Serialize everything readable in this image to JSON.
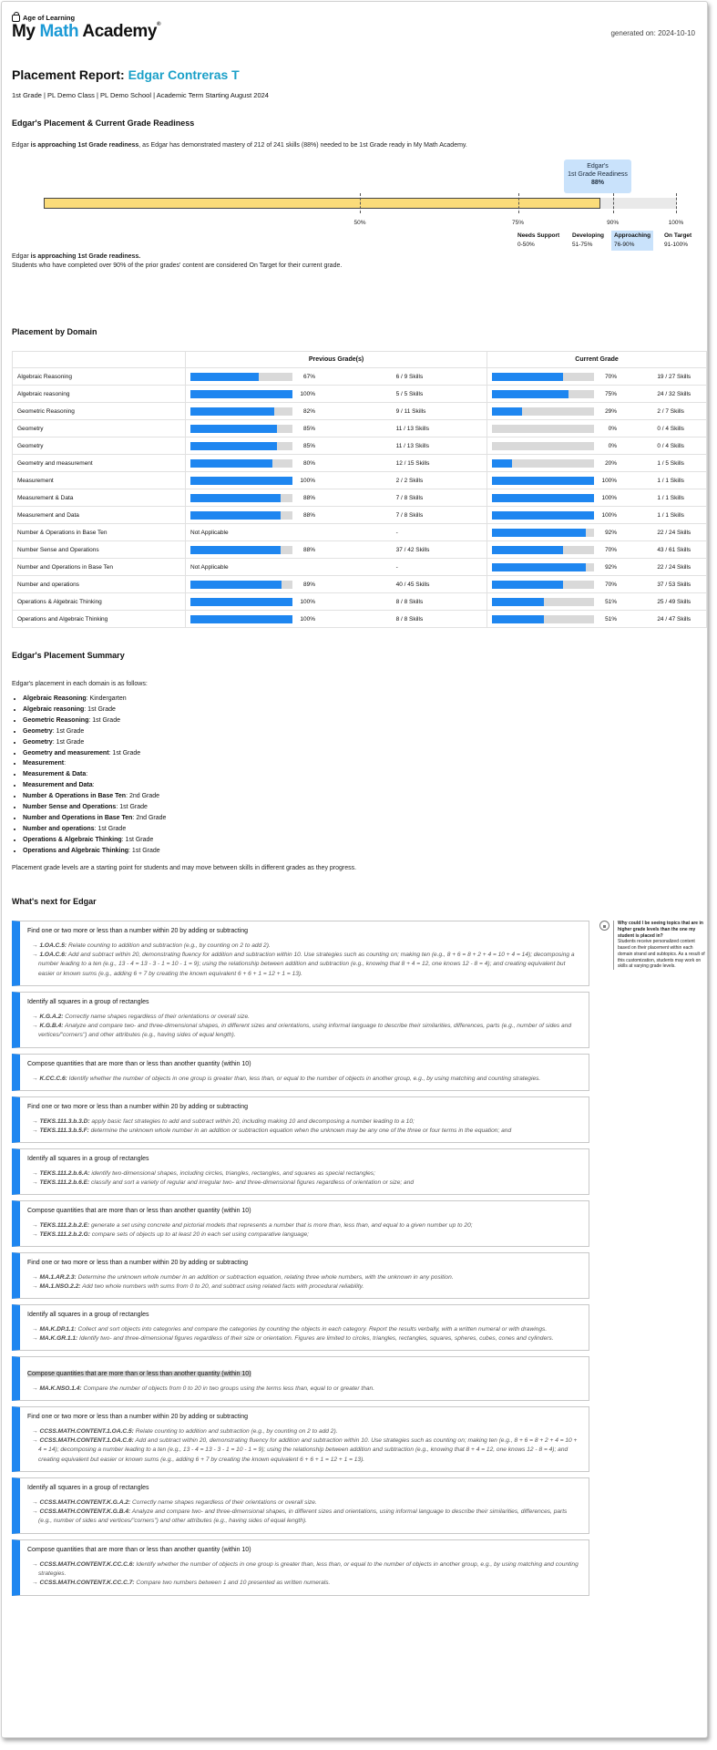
{
  "header": {
    "company": "Age of Learning",
    "brand_part1": "My ",
    "brand_part2": "Math",
    "brand_part3": " Academy",
    "generated": "generated on: 2024-10-10"
  },
  "report": {
    "title_prefix": "Placement Report: ",
    "student": "Edgar Contreras T",
    "subtitle": "1st Grade | PL Demo Class | PL Demo School | Academic Term Starting August 2024"
  },
  "readiness": {
    "heading": "Edgar's Placement & Current Grade Readiness",
    "intro_a": "Edgar ",
    "intro_b": "is approaching 1st Grade readiness",
    "intro_c": ", as Edgar has demonstrated mastery of 212 of 241 skills (88%) needed to be 1st Grade ready in My Math Academy.",
    "bubble_line1": "Edgar's",
    "bubble_line2": "1st Grade Readiness",
    "bubble_value": "88%",
    "fill_fraction": 0.88,
    "ticks": [
      "50%",
      "75%",
      "90%",
      "100%"
    ],
    "legend": [
      {
        "label": "Needs Support",
        "range": "0-50%"
      },
      {
        "label": "Developing",
        "range": "51-75%"
      },
      {
        "label": "Approaching",
        "range": "76-90%"
      },
      {
        "label": "On Target",
        "range": "91-100%"
      }
    ],
    "note_a": "Edgar ",
    "note_b": "is approaching 1st Grade readiness.",
    "note_c": "Students who have completed over 90% of the prior grades' content are considered On Target for their current grade."
  },
  "domain": {
    "heading": "Placement by Domain",
    "col_prev": "Previous Grade(s)",
    "col_curr": "Current Grade",
    "rows": [
      {
        "name": "Algebraic Reasoning",
        "prev_pct": 67,
        "prev_label": "67%",
        "prev_skills": "6 / 9 Skills",
        "cur_pct": 70,
        "cur_label": "70%",
        "cur_skills": "19 / 27 Skills"
      },
      {
        "name": "Algebraic reasoning",
        "prev_pct": 100,
        "prev_label": "100%",
        "prev_skills": "5 / 5 Skills",
        "cur_pct": 75,
        "cur_label": "75%",
        "cur_skills": "24 / 32 Skills"
      },
      {
        "name": "Geometric Reasoning",
        "prev_pct": 82,
        "prev_label": "82%",
        "prev_skills": "9 / 11 Skills",
        "cur_pct": 29,
        "cur_label": "29%",
        "cur_skills": "2 / 7 Skills"
      },
      {
        "name": "Geometry",
        "prev_pct": 85,
        "prev_label": "85%",
        "prev_skills": "11 / 13 Skills",
        "cur_pct": 0,
        "cur_label": "0%",
        "cur_skills": "0 / 4 Skills"
      },
      {
        "name": "Geometry",
        "prev_pct": 85,
        "prev_label": "85%",
        "prev_skills": "11 / 13 Skills",
        "cur_pct": 0,
        "cur_label": "0%",
        "cur_skills": "0 / 4 Skills"
      },
      {
        "name": "Geometry and measurement",
        "prev_pct": 80,
        "prev_label": "80%",
        "prev_skills": "12 / 15 Skills",
        "cur_pct": 20,
        "cur_label": "20%",
        "cur_skills": "1 / 5 Skills"
      },
      {
        "name": "Measurement",
        "prev_pct": 100,
        "prev_label": "100%",
        "prev_skills": "2 / 2 Skills",
        "cur_pct": 100,
        "cur_label": "100%",
        "cur_skills": "1 / 1 Skills"
      },
      {
        "name": "Measurement & Data",
        "prev_pct": 88,
        "prev_label": "88%",
        "prev_skills": "7 / 8 Skills",
        "cur_pct": 100,
        "cur_label": "100%",
        "cur_skills": "1 / 1 Skills"
      },
      {
        "name": "Measurement and Data",
        "prev_pct": 88,
        "prev_label": "88%",
        "prev_skills": "7 / 8 Skills",
        "cur_pct": 100,
        "cur_label": "100%",
        "cur_skills": "1 / 1 Skills"
      },
      {
        "name": "Number & Operations in Base Ten",
        "prev_na": "Not Applicable",
        "prev_skills": "-",
        "cur_pct": 92,
        "cur_label": "92%",
        "cur_skills": "22 / 24 Skills"
      },
      {
        "name": "Number Sense and Operations",
        "prev_pct": 88,
        "prev_label": "88%",
        "prev_skills": "37 / 42 Skills",
        "cur_pct": 70,
        "cur_label": "70%",
        "cur_skills": "43 / 61 Skills"
      },
      {
        "name": "Number and Operations in Base Ten",
        "prev_na": "Not Applicable",
        "prev_skills": "-",
        "cur_pct": 92,
        "cur_label": "92%",
        "cur_skills": "22 / 24 Skills"
      },
      {
        "name": "Number and operations",
        "prev_pct": 89,
        "prev_label": "89%",
        "prev_skills": "40 / 45 Skills",
        "cur_pct": 70,
        "cur_label": "70%",
        "cur_skills": "37 / 53 Skills"
      },
      {
        "name": "Operations & Algebraic Thinking",
        "prev_pct": 100,
        "prev_label": "100%",
        "prev_skills": "8 / 8 Skills",
        "cur_pct": 51,
        "cur_label": "51%",
        "cur_skills": "25 / 49 Skills"
      },
      {
        "name": "Operations and Algebraic Thinking",
        "prev_pct": 100,
        "prev_label": "100%",
        "prev_skills": "8 / 8 Skills",
        "cur_pct": 51,
        "cur_label": "51%",
        "cur_skills": "24 / 47 Skills"
      }
    ]
  },
  "summary": {
    "heading": "Edgar's Placement Summary",
    "intro": "Edgar's placement in each domain is as follows:",
    "items": [
      {
        "domain": "Algebraic Reasoning",
        "grade": ": Kindergarten"
      },
      {
        "domain": "Algebraic reasoning",
        "grade": ": 1st Grade"
      },
      {
        "domain": "Geometric Reasoning",
        "grade": ": 1st Grade"
      },
      {
        "domain": "Geometry",
        "grade": ": 1st Grade"
      },
      {
        "domain": "Geometry",
        "grade": ": 1st Grade"
      },
      {
        "domain": "Geometry and measurement",
        "grade": ": 1st Grade"
      },
      {
        "domain": "Measurement",
        "grade": ":"
      },
      {
        "domain": "Measurement & Data",
        "grade": ":"
      },
      {
        "domain": "Measurement and Data",
        "grade": ":"
      },
      {
        "domain": "Number & Operations in Base Ten",
        "grade": ": 2nd Grade"
      },
      {
        "domain": "Number Sense and Operations",
        "grade": ": 1st Grade"
      },
      {
        "domain": "Number and Operations in Base Ten",
        "grade": ": 2nd Grade"
      },
      {
        "domain": "Number and operations",
        "grade": ": 1st Grade"
      },
      {
        "domain": "Operations & Algebraic Thinking",
        "grade": ": 1st Grade"
      },
      {
        "domain": "Operations and Algebraic Thinking",
        "grade": ": 1st Grade"
      }
    ],
    "footer": "Placement grade levels are a starting point for students and may move between skills in different grades as they progress."
  },
  "next": {
    "heading": "What's next for Edgar",
    "side_note_title": "Why could I be seeing topics that are in higher grade levels than the one my student is placed in?",
    "side_note_body": "Students receive personalized content based on their placement within each domain strand and subtopics. As a result of this customization, students may work on skills at varying grade levels.",
    "cards": [
      {
        "title": "Find one or two more or less than a number within 20 by adding or subtracting",
        "standards": [
          {
            "code": "1.OA.C.5:",
            "text": " Relate counting to addition and subtraction (e.g., by counting on 2 to add 2)."
          },
          {
            "code": "1.OA.C.6:",
            "text": " Add and subtract within 20, demonstrating fluency for addition and subtraction within 10. Use strategies such as counting on; making ten (e.g., 8 + 6 = 8 + 2 + 4 = 10 + 4 = 14); decomposing a number leading to a ten (e.g., 13 - 4 = 13 - 3 - 1 = 10 - 1 = 9); using the relationship between addition and subtraction (e.g., knowing that 8 + 4 = 12, one knows 12 - 8 = 4); and creating equivalent but easier or known sums (e.g., adding 6 + 7 by creating the known equivalent 6 + 6 + 1 = 12 + 1 = 13)."
          }
        ]
      },
      {
        "title": "Identify all squares in a group of rectangles",
        "standards": [
          {
            "code": "K.G.A.2:",
            "text": " Correctly name shapes regardless of their orientations or overall size."
          },
          {
            "code": "K.G.B.4:",
            "text": " Analyze and compare two- and three-dimensional shapes, in different sizes and orientations, using informal language to describe their similarities, differences, parts (e.g., number of sides and vertices/\"corners\") and other attributes (e.g., having sides of equal length)."
          }
        ]
      },
      {
        "title": "Compose quantities that are more than or less than another quantity (within 10)",
        "standards": [
          {
            "code": "K.CC.C.6:",
            "text": " Identify whether the number of objects in one group is greater than, less than, or equal to the number of objects in another group, e.g., by using matching and counting strategies."
          }
        ]
      },
      {
        "title": "Find one or two more or less than a number within 20 by adding or subtracting",
        "standards": [
          {
            "code": "TEKS.111.3.b.3.D:",
            "text": " apply basic fact strategies to add and subtract within 20, including making 10 and decomposing a number leading to a 10;"
          },
          {
            "code": "TEKS.111.3.b.5.F:",
            "text": " determine the unknown whole number in an addition or subtraction equation when the unknown may be any one of the three or four terms in the equation; and"
          }
        ]
      },
      {
        "title": "Identify all squares in a group of rectangles",
        "standards": [
          {
            "code": "TEKS.111.2.b.6.A:",
            "text": " identify two-dimensional shapes, including circles, triangles, rectangles, and squares as special rectangles;"
          },
          {
            "code": "TEKS.111.2.b.6.E:",
            "text": " classify and sort a variety of regular and irregular two- and three-dimensional figures regardless of orientation or size; and"
          }
        ]
      },
      {
        "title": "Compose quantities that are more than or less than another quantity (within 10)",
        "standards": [
          {
            "code": "TEKS.111.2.b.2.E:",
            "text": " generate a set using concrete and pictorial models that represents a number that is more than, less than, and equal to a given number up to 20;"
          },
          {
            "code": "TEKS.111.2.b.2.G:",
            "text": " compare sets of objects up to at least 20 in each set using comparative language;"
          }
        ]
      },
      {
        "title": "Find one or two more or less than a number within 20 by adding or subtracting",
        "standards": [
          {
            "code": "MA.1.AR.2.3:",
            "text": " Determine the unknown whole number in an addition or subtraction equation, relating three whole numbers, with the unknown in any position."
          },
          {
            "code": "MA.1.NSO.2.2:",
            "text": " Add two whole numbers with sums from 0 to 20, and subtract using related facts with procedural reliability."
          }
        ]
      },
      {
        "title": "Identify all squares in a group of rectangles",
        "standards": [
          {
            "code": "MA.K.DP.1.1:",
            "text": " Collect and sort objects into categories and compare the categories by counting the objects in each category. Report the results verbally, with a written numeral or with drawings."
          },
          {
            "code": "MA.K.GR.1.1:",
            "text": " Identify two- and three-dimensional figures regardless of their size or orientation. Figures are limited to circles, triangles, rectangles, squares, spheres, cubes, cones and cylinders."
          }
        ]
      },
      {
        "title": "Compose quantities that are more than or less than another quantity (within 10)",
        "highlight": true,
        "standards": [
          {
            "code": "MA.K.NSO.1.4:",
            "text": " Compare the number of objects from 0 to 20 in two groups using the terms less than, equal to or greater than."
          }
        ]
      },
      {
        "title": "Find one or two more or less than a number within 20 by adding or subtracting",
        "standards": [
          {
            "code": "CCSS.MATH.CONTENT.1.OA.C.5:",
            "text": " Relate counting to addition and subtraction (e.g., by counting on 2 to add 2)."
          },
          {
            "code": "CCSS.MATH.CONTENT.1.OA.C.6:",
            "text": " Add and subtract within 20, demonstrating fluency for addition and subtraction within 10. Use strategies such as counting on; making ten (e.g., 8 + 6 = 8 + 2 + 4 = 10 + 4 = 14); decomposing a number leading to a ten (e.g., 13 - 4 = 13 - 3 - 1 = 10 - 1 = 9); using the relationship between addition and subtraction (e.g., knowing that 8 + 4 = 12, one knows 12 - 8 = 4); and creating equivalent but easier or known sums (e.g., adding 6 + 7 by creating the known equivalent 6 + 6 + 1 = 12 + 1 = 13)."
          }
        ]
      },
      {
        "title": "Identify all squares in a group of rectangles",
        "standards": [
          {
            "code": "CCSS.MATH.CONTENT.K.G.A.2:",
            "text": " Correctly name shapes regardless of their orientations or overall size."
          },
          {
            "code": "CCSS.MATH.CONTENT.K.G.B.4:",
            "text": " Analyze and compare two- and three-dimensional shapes, in different sizes and orientations, using informal language to describe their similarities, differences, parts (e.g., number of sides and vertices/\"corners\") and other attributes (e.g., having sides of equal length)."
          }
        ]
      },
      {
        "title": "Compose quantities that are more than or less than another quantity (within 10)",
        "standards": [
          {
            "code": "CCSS.MATH.CONTENT.K.CC.C.6:",
            "text": " Identify whether the number of objects in one group is greater than, less than, or equal to the number of objects in another group, e.g., by using matching and counting strategies."
          },
          {
            "code": "CCSS.MATH.CONTENT.K.CC.C.7:",
            "text": " Compare two numbers between 1 and 10 presented as written numerals."
          }
        ]
      }
    ]
  }
}
